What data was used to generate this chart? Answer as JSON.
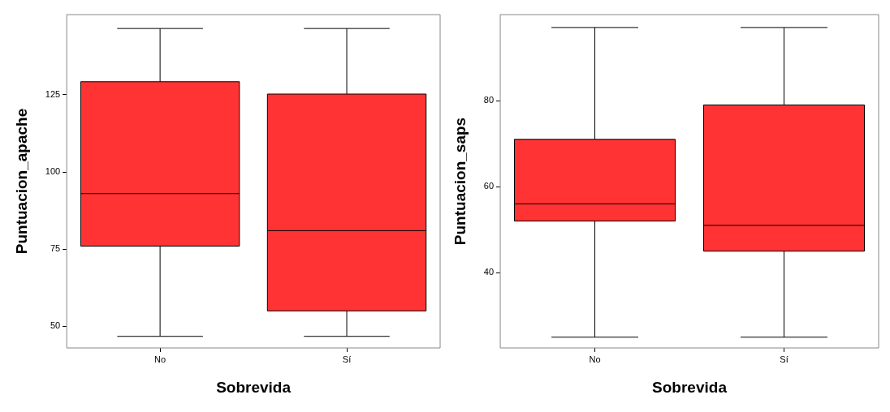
{
  "chart_data": [
    {
      "type": "box",
      "categories": [
        "No",
        "Sí"
      ],
      "xlabel": "Sobrevida",
      "ylabel": "Puntuacion_apache",
      "color": "#ff3333",
      "ylim": [
        43,
        151
      ],
      "yticks": [
        50,
        75,
        100,
        125
      ],
      "grid": false,
      "boxes": [
        {
          "low": 46.75,
          "q1": 76,
          "median": 93,
          "q3": 129.25,
          "high": 146.5
        },
        {
          "low": 46.75,
          "q1": 55,
          "median": 81,
          "q3": 125.25,
          "high": 146.5
        }
      ]
    },
    {
      "type": "box",
      "categories": [
        "No",
        "Sí"
      ],
      "xlabel": "Sobrevida",
      "ylabel": "Puntuacion_saps",
      "color": "#ff3333",
      "ylim": [
        22.5,
        100
      ],
      "yticks": [
        40,
        60,
        80
      ],
      "grid": false,
      "boxes": [
        {
          "low": 25,
          "q1": 52,
          "median": 56,
          "q3": 71,
          "high": 97
        },
        {
          "low": 25,
          "q1": 45,
          "median": 51,
          "q3": 79,
          "high": 97
        }
      ]
    }
  ]
}
